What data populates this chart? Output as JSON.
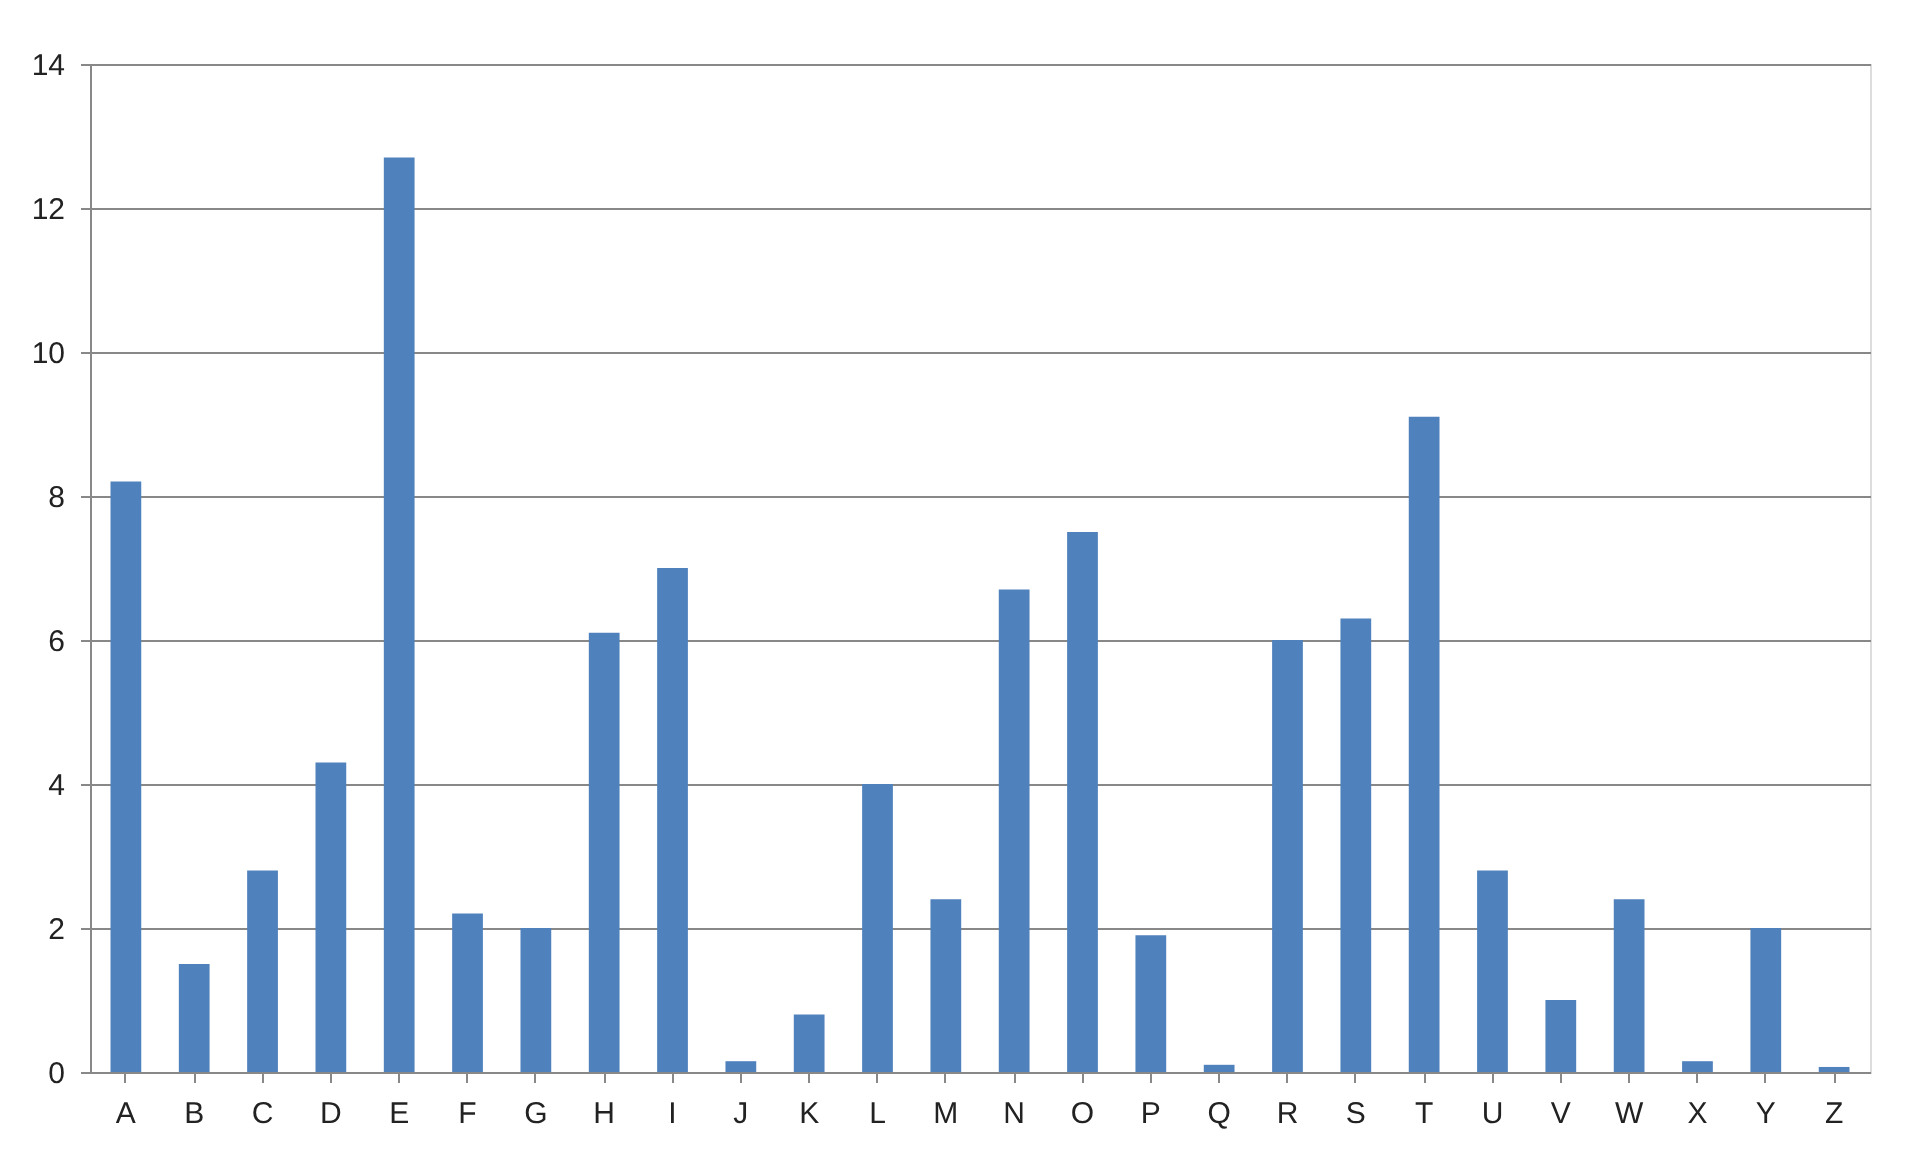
{
  "chart_data": {
    "type": "bar",
    "categories": [
      "A",
      "B",
      "C",
      "D",
      "E",
      "F",
      "G",
      "H",
      "I",
      "J",
      "K",
      "L",
      "M",
      "N",
      "O",
      "P",
      "Q",
      "R",
      "S",
      "T",
      "U",
      "V",
      "W",
      "X",
      "Y",
      "Z"
    ],
    "values": [
      8.2,
      1.5,
      2.8,
      4.3,
      12.7,
      2.2,
      2.0,
      6.1,
      7.0,
      0.15,
      0.8,
      4.0,
      2.4,
      6.7,
      7.5,
      1.9,
      0.1,
      6.0,
      6.3,
      9.1,
      2.8,
      1.0,
      2.4,
      0.15,
      2.0,
      0.07
    ],
    "color": "#4f81bd",
    "ylim": [
      0,
      14
    ],
    "yticks": [
      0,
      2,
      4,
      6,
      8,
      10,
      12,
      14
    ],
    "grid": "y"
  }
}
